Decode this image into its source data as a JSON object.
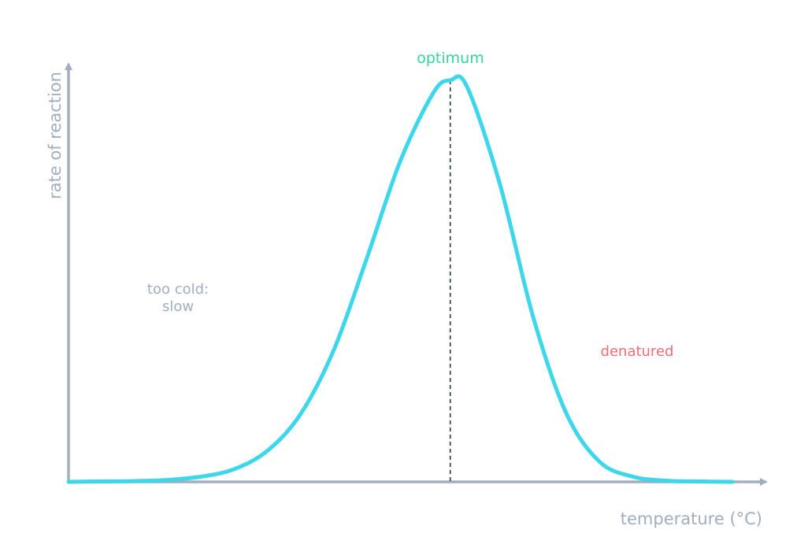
{
  "chart_data": {
    "type": "line",
    "title": "",
    "xlabel": "temperature (°C)",
    "ylabel": "rate of reaction",
    "grid": false,
    "series": [
      {
        "color": "#3dd6ea",
        "x": [
          0.0,
          0.05,
          0.1,
          0.15,
          0.2,
          0.25,
          0.3,
          0.35,
          0.4,
          0.45,
          0.5,
          0.55,
          0.575,
          0.6,
          0.65,
          0.7,
          0.75,
          0.8,
          0.85,
          0.9,
          0.95,
          1.0
        ],
        "y": [
          0.0,
          0.001,
          0.002,
          0.005,
          0.013,
          0.032,
          0.078,
          0.17,
          0.33,
          0.56,
          0.8,
          0.97,
          1.0,
          0.985,
          0.74,
          0.41,
          0.17,
          0.05,
          0.013,
          0.003,
          0.001,
          0.0
        ]
      }
    ],
    "annotations": {
      "optimum": {
        "text": "optimum",
        "color": "#34d399",
        "x": 0.575
      },
      "cold": {
        "lines": [
          "too cold:",
          "slow"
        ],
        "color": "#a0aec0"
      },
      "denatured": {
        "text": "denatured",
        "color": "#f06c7a"
      }
    },
    "axis_color": "#a0aec0"
  }
}
